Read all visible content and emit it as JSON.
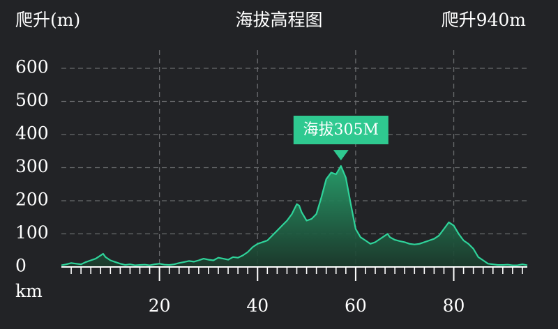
{
  "header": {
    "y_unit": "爬升(m)",
    "title": "海拔高程图",
    "total_climb": "爬升940m"
  },
  "colors": {
    "background": "#222326",
    "line": "#2fd39a",
    "fill_top": "#27a06c",
    "fill_bottom": "#1b3b2c",
    "grid": "#6a6b6e",
    "badge": "#2fc990"
  },
  "chart_data": {
    "type": "area",
    "title": "海拔高程图",
    "ylabel": "爬升(m)",
    "xlabel": "km",
    "xlim": [
      0,
      95
    ],
    "ylim": [
      0,
      600
    ],
    "y_ticks": [
      0,
      100,
      200,
      300,
      400,
      500,
      600
    ],
    "x_ticks": [
      20,
      40,
      60,
      80
    ],
    "grid": "dashed-horizontal-and-vertical",
    "peak": {
      "x": 57,
      "y": 305,
      "label": "海拔305M"
    },
    "x": [
      0,
      1,
      2,
      3,
      4,
      5,
      6,
      7,
      8,
      8.5,
      9,
      10,
      11,
      12,
      13,
      14,
      15,
      16,
      17,
      18,
      19,
      20,
      21,
      22,
      23,
      24,
      25,
      26,
      27,
      28,
      29,
      30,
      31,
      32,
      33,
      34,
      35,
      36,
      37,
      38,
      39,
      40,
      41,
      42,
      43,
      44,
      45,
      46,
      47,
      48,
      48.5,
      49,
      50,
      51,
      52,
      53,
      54,
      55,
      56,
      57,
      58,
      59,
      60,
      61,
      62,
      63,
      64,
      65,
      66,
      66.5,
      67,
      68,
      69,
      70,
      71,
      72,
      73,
      74,
      75,
      76,
      77,
      78,
      79,
      80,
      81,
      82,
      83,
      84,
      85,
      86,
      87,
      88,
      89,
      90,
      91,
      92,
      93,
      94,
      95
    ],
    "values": [
      5,
      8,
      12,
      10,
      8,
      15,
      20,
      25,
      35,
      40,
      30,
      20,
      15,
      10,
      6,
      8,
      5,
      6,
      7,
      5,
      8,
      10,
      7,
      6,
      8,
      12,
      15,
      18,
      16,
      20,
      25,
      22,
      20,
      28,
      25,
      22,
      30,
      28,
      35,
      45,
      60,
      70,
      75,
      80,
      95,
      110,
      125,
      140,
      160,
      190,
      185,
      165,
      140,
      145,
      160,
      210,
      265,
      285,
      280,
      305,
      270,
      190,
      115,
      90,
      80,
      70,
      75,
      85,
      95,
      100,
      90,
      82,
      78,
      75,
      70,
      68,
      70,
      75,
      80,
      85,
      95,
      115,
      135,
      125,
      100,
      80,
      70,
      55,
      30,
      20,
      10,
      8,
      6,
      6,
      7,
      5,
      5,
      8,
      5
    ]
  }
}
